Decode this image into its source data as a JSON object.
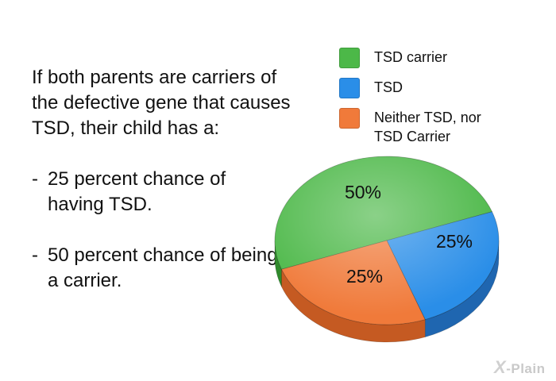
{
  "text": {
    "intro": "If both parents are carriers of the defective gene that causes TSD, their child has a:",
    "bullets": [
      {
        "dash": "-",
        "text": "25 percent chance of having TSD."
      },
      {
        "dash": "-",
        "text": "50 percent chance of being a carrier."
      }
    ]
  },
  "chart_data": {
    "type": "pie",
    "title": "",
    "slices": [
      {
        "label": "TSD carrier",
        "value": 50,
        "display": "50%",
        "color": "#4cb848",
        "side_color": "#2f8a2c"
      },
      {
        "label": "TSD",
        "value": 25,
        "display": "25%",
        "color": "#2a8ee8",
        "side_color": "#1f66b0"
      },
      {
        "label": "Neither TSD, nor TSD Carrier",
        "value": 25,
        "display": "25%",
        "color": "#f07a3a",
        "side_color": "#c55a22"
      }
    ],
    "legend_position": "top-right"
  },
  "legend": [
    {
      "lines": [
        "TSD carrier"
      ],
      "color": "#4cb848"
    },
    {
      "lines": [
        "TSD"
      ],
      "color": "#2a8ee8"
    },
    {
      "lines": [
        "Neither TSD, nor",
        "TSD Carrier"
      ],
      "color": "#f07a3a"
    }
  ],
  "logo": {
    "mark": "X",
    "text": "-Plain"
  }
}
